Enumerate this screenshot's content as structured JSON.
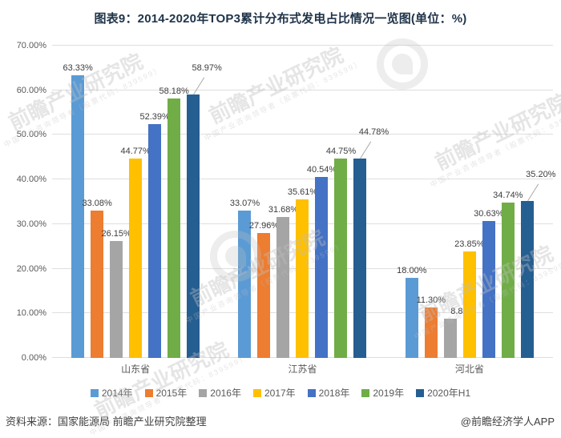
{
  "title": "图表9：2014-2020年TOP3累计分布式发电占比情况一览图(单位：%)",
  "footer": {
    "source": "资料来源：国家能源局 前瞻产业研究院整理",
    "credit": "@前瞻经济学人APP"
  },
  "watermark": {
    "text": "前瞻产业研究院",
    "subtext": "中国产业咨询领导者（股票代码：839599）"
  },
  "colors": {
    "title_text": "#1f3349",
    "axis_text": "#595959",
    "value_label_text": "#3d3d3d",
    "gridline": "#dedede"
  },
  "chart_data": {
    "type": "bar",
    "title": "图表9：2014-2020年TOP3累计分布式发电占比情况一览图(单位：%)",
    "categories": [
      "山东省",
      "江苏省",
      "河北省"
    ],
    "series": [
      {
        "name": "2014年",
        "color": "#5B9BD5",
        "values": [
          63.33,
          33.07,
          18.0
        ]
      },
      {
        "name": "2015年",
        "color": "#ED7D31",
        "values": [
          33.08,
          27.96,
          11.3
        ]
      },
      {
        "name": "2016年",
        "color": "#A5A5A5",
        "values": [
          26.15,
          31.68,
          8.8
        ]
      },
      {
        "name": "2017年",
        "color": "#FFC000",
        "values": [
          44.77,
          35.61,
          23.85
        ]
      },
      {
        "name": "2018年",
        "color": "#4472C4",
        "values": [
          52.39,
          40.54,
          30.63
        ]
      },
      {
        "name": "2019年",
        "color": "#70AD47",
        "values": [
          58.18,
          44.75,
          34.74
        ]
      },
      {
        "name": "2020年H1",
        "color": "#255E91",
        "values": [
          58.97,
          44.78,
          35.2
        ]
      }
    ],
    "xlabel": "",
    "ylabel": "",
    "ylim": [
      0,
      70
    ],
    "yticks": [
      "0.00%",
      "10.00%",
      "20.00%",
      "30.00%",
      "40.00%",
      "50.00%",
      "60.00%",
      "70.00%"
    ],
    "grid": true,
    "legend_position": "bottom",
    "value_labels": true,
    "value_label_format": "0.00%",
    "callout_last_series": true,
    "label_offsets": [
      {
        "group": 2,
        "series": 2,
        "dx": 16
      }
    ]
  }
}
